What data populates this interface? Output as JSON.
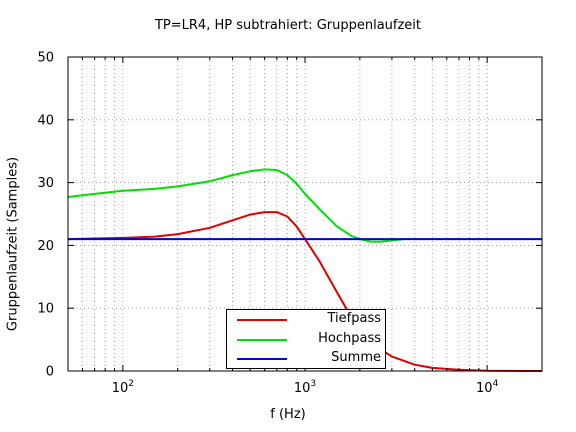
{
  "chart_data": {
    "type": "line",
    "title": "TP=LR4, HP subtrahiert: Gruppenlaufzeit",
    "xlabel": "f (Hz)",
    "ylabel": "Gruppenlaufzeit (Samples)",
    "xscale": "log",
    "xlim": [
      50,
      20000
    ],
    "ylim": [
      0,
      50
    ],
    "yticks": [
      0,
      10,
      20,
      30,
      40,
      50
    ],
    "xticks": [
      {
        "value": 100,
        "base": "10",
        "exp": "2"
      },
      {
        "value": 1000,
        "base": "10",
        "exp": "3"
      },
      {
        "value": 10000,
        "base": "10",
        "exp": "4"
      }
    ],
    "grid": true,
    "legend_position": "bottom-center",
    "series": [
      {
        "name": "Tiefpass",
        "color": "#e00000",
        "x": [
          50,
          70,
          100,
          150,
          200,
          300,
          400,
          500,
          600,
          700,
          800,
          900,
          1000,
          1200,
          1500,
          1800,
          2000,
          2500,
          3000,
          4000,
          5000,
          7000,
          10000,
          15000,
          20000
        ],
        "y": [
          21.0,
          21.1,
          21.2,
          21.4,
          21.8,
          22.8,
          24.0,
          24.9,
          25.3,
          25.3,
          24.6,
          23.0,
          21.0,
          17.5,
          12.5,
          8.5,
          6.5,
          3.8,
          2.3,
          1.0,
          0.5,
          0.2,
          0.05,
          0.0,
          0.0
        ]
      },
      {
        "name": "Hochpass",
        "color": "#00e000",
        "x": [
          50,
          70,
          100,
          150,
          200,
          300,
          400,
          500,
          600,
          700,
          800,
          900,
          1000,
          1200,
          1500,
          1800,
          2000,
          2300,
          2600,
          3000,
          3500
        ],
        "y": [
          27.7,
          28.2,
          28.7,
          29.0,
          29.4,
          30.2,
          31.2,
          31.8,
          32.1,
          32.0,
          31.2,
          29.8,
          28.2,
          25.8,
          23.0,
          21.5,
          21.0,
          20.6,
          20.6,
          20.8,
          21.0
        ]
      },
      {
        "name": "Summe",
        "color": "#0000e0",
        "x": [
          50,
          20000
        ],
        "y": [
          21.0,
          21.0
        ]
      }
    ]
  }
}
